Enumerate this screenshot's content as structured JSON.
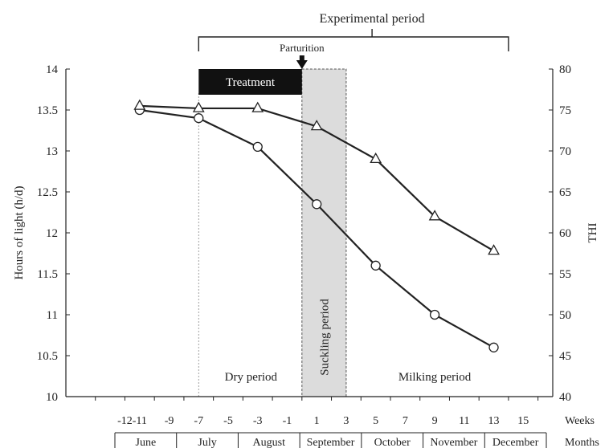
{
  "chart_data": {
    "type": "line",
    "annotations": {
      "experimental_period": "Experimental period",
      "parturition": "Parturition",
      "treatment": "Treatment",
      "suckling_period": "Suckling period",
      "dry_period": "Dry period",
      "milking_period": "Milking period"
    },
    "ylabel_left": "Hours of light (h/d)",
    "ylabel_right": "THI",
    "ylim_left": [
      10,
      14
    ],
    "ylim_right": [
      40,
      80
    ],
    "xlim": [
      -16,
      17
    ],
    "y_ticks_left": [
      "10",
      "10.5",
      "11",
      "11.5",
      "12",
      "12.5",
      "13",
      "13.5",
      "14"
    ],
    "y_ticks_right": [
      "40",
      "45",
      "50",
      "55",
      "60",
      "65",
      "70",
      "75",
      "80"
    ],
    "weeks_label": "Weeks",
    "week_ticks": [
      "-12",
      "-11",
      "-9",
      "-7",
      "-5",
      "-3",
      "-1",
      "1",
      "3",
      "5",
      "7",
      "9",
      "11",
      "13",
      "15"
    ],
    "months_label": "Months",
    "months": [
      "June",
      "July",
      "August",
      "September",
      "October",
      "November",
      "December"
    ],
    "treatment_weeks": [
      -7,
      0
    ],
    "suckling_weeks": [
      0,
      3
    ],
    "parturition_week": 0,
    "experimental_period_weeks": [
      -7,
      14
    ],
    "series": [
      {
        "marker": "circle",
        "axis": "left",
        "x": [
          -11,
          -7,
          -3,
          1,
          5,
          9,
          13
        ],
        "values": [
          13.5,
          13.4,
          13.05,
          12.35,
          11.6,
          11.0,
          10.6
        ]
      },
      {
        "marker": "triangle",
        "axis": "right",
        "x": [
          -11,
          -7,
          -3,
          1,
          5,
          9,
          13
        ],
        "values": [
          75.5,
          75.2,
          75.2,
          73.0,
          69.0,
          62.0,
          57.8
        ]
      }
    ],
    "grid": false
  },
  "colors": {
    "axis": "#222222",
    "treatment_fill": "#111111",
    "suckling_fill": "#dcdcdc",
    "marker_fill": "#ffffff"
  }
}
